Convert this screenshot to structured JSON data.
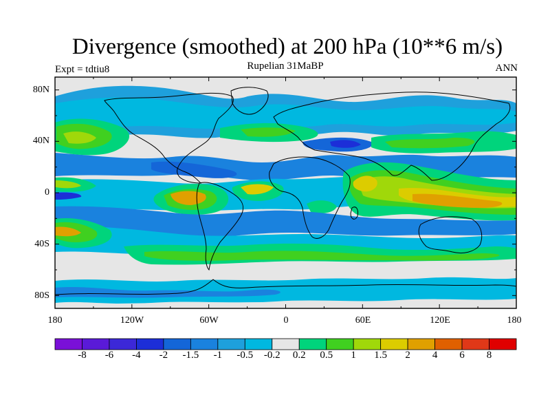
{
  "header": {
    "title": "Divergence (smoothed) at 200 hPa (10**6 m/s)",
    "subtitle": "Rupelian  31MaBP",
    "experiment": "Expt = tdtiu8",
    "season": "ANN"
  },
  "axes": {
    "lat_labels": [
      "80N",
      "40N",
      "0",
      "40S",
      "80S"
    ],
    "lon_labels": [
      "180",
      "120W",
      "60W",
      "0",
      "60E",
      "120E",
      "180"
    ]
  },
  "colorbar": {
    "labels": [
      "-8",
      "-6",
      "-4",
      "-2",
      "-1.5",
      "-1",
      "-0.5",
      "-0.2",
      "0.2",
      "0.5",
      "1",
      "1.5",
      "2",
      "4",
      "6",
      "8"
    ],
    "colors": [
      "#7a10d8",
      "#5a1ad8",
      "#3c28d8",
      "#1c2ed8",
      "#1466d8",
      "#1a82de",
      "#1ea0dc",
      "#00b8e0",
      "#e6e6e6",
      "#00d47c",
      "#40d020",
      "#a0d80a",
      "#dccc00",
      "#e0a000",
      "#e06000",
      "#e03818",
      "#e00000"
    ]
  },
  "map": {
    "colors": {
      "neutral": "#e6e6e6",
      "cyan": "#00b8e0",
      "lightblue": "#1ea0dc",
      "blue": "#1a82de",
      "darkblue": "#1466d8",
      "navy": "#1c2ed8",
      "green": "#00d47c",
      "lime": "#40d020",
      "yellowgreen": "#a0d80a",
      "yellow": "#dccc00",
      "orange": "#e0a000"
    }
  }
}
